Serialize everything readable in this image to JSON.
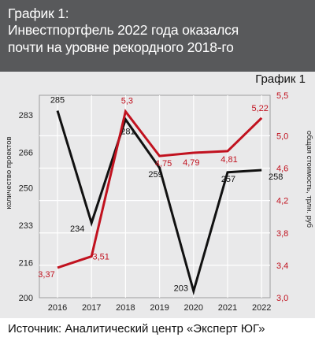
{
  "header": {
    "title_line1": "График 1:",
    "title_line2": "Инвестпортфель 2022 года оказался",
    "title_line3": "почти на уровне рекордного 2018-го"
  },
  "footer": {
    "source": "Источник: Аналитический центр «Эксперт ЮГ»"
  },
  "colors": {
    "header_bg": "#58595b",
    "panel_bg": "#e9e9ea",
    "series_projects": "#111111",
    "series_value": "#c1121f"
  },
  "chart_data": {
    "type": "line",
    "title": "График 1",
    "x": [
      "2016",
      "2017",
      "2018",
      "2019",
      "2020",
      "2021",
      "2022"
    ],
    "y_left": {
      "label": "количество проектов",
      "ticks": [
        "283",
        "266",
        "250",
        "233",
        "216",
        "200"
      ],
      "range": [
        200,
        292
      ]
    },
    "y_right": {
      "label": "общая стоимость, трлн. руб",
      "ticks": [
        "5,5",
        "5,0",
        "4,6",
        "4,2",
        "3,8",
        "3,4",
        "3,0"
      ],
      "range": [
        3.0,
        5.5
      ]
    },
    "series": [
      {
        "axis": "left",
        "color": "#111111",
        "values": [
          285,
          234,
          281,
          259,
          203,
          257,
          258
        ],
        "labels": [
          "285",
          "234",
          "281",
          "259",
          "203",
          "257",
          "258"
        ]
      },
      {
        "axis": "right",
        "color": "#c1121f",
        "values": [
          3.37,
          3.51,
          5.3,
          4.75,
          4.79,
          4.81,
          5.22
        ],
        "labels": [
          "3,37",
          "3,51",
          "5,3",
          "4,75",
          "4,79",
          "4,81",
          "5,22"
        ]
      }
    ],
    "grid": true,
    "legend": "none"
  }
}
